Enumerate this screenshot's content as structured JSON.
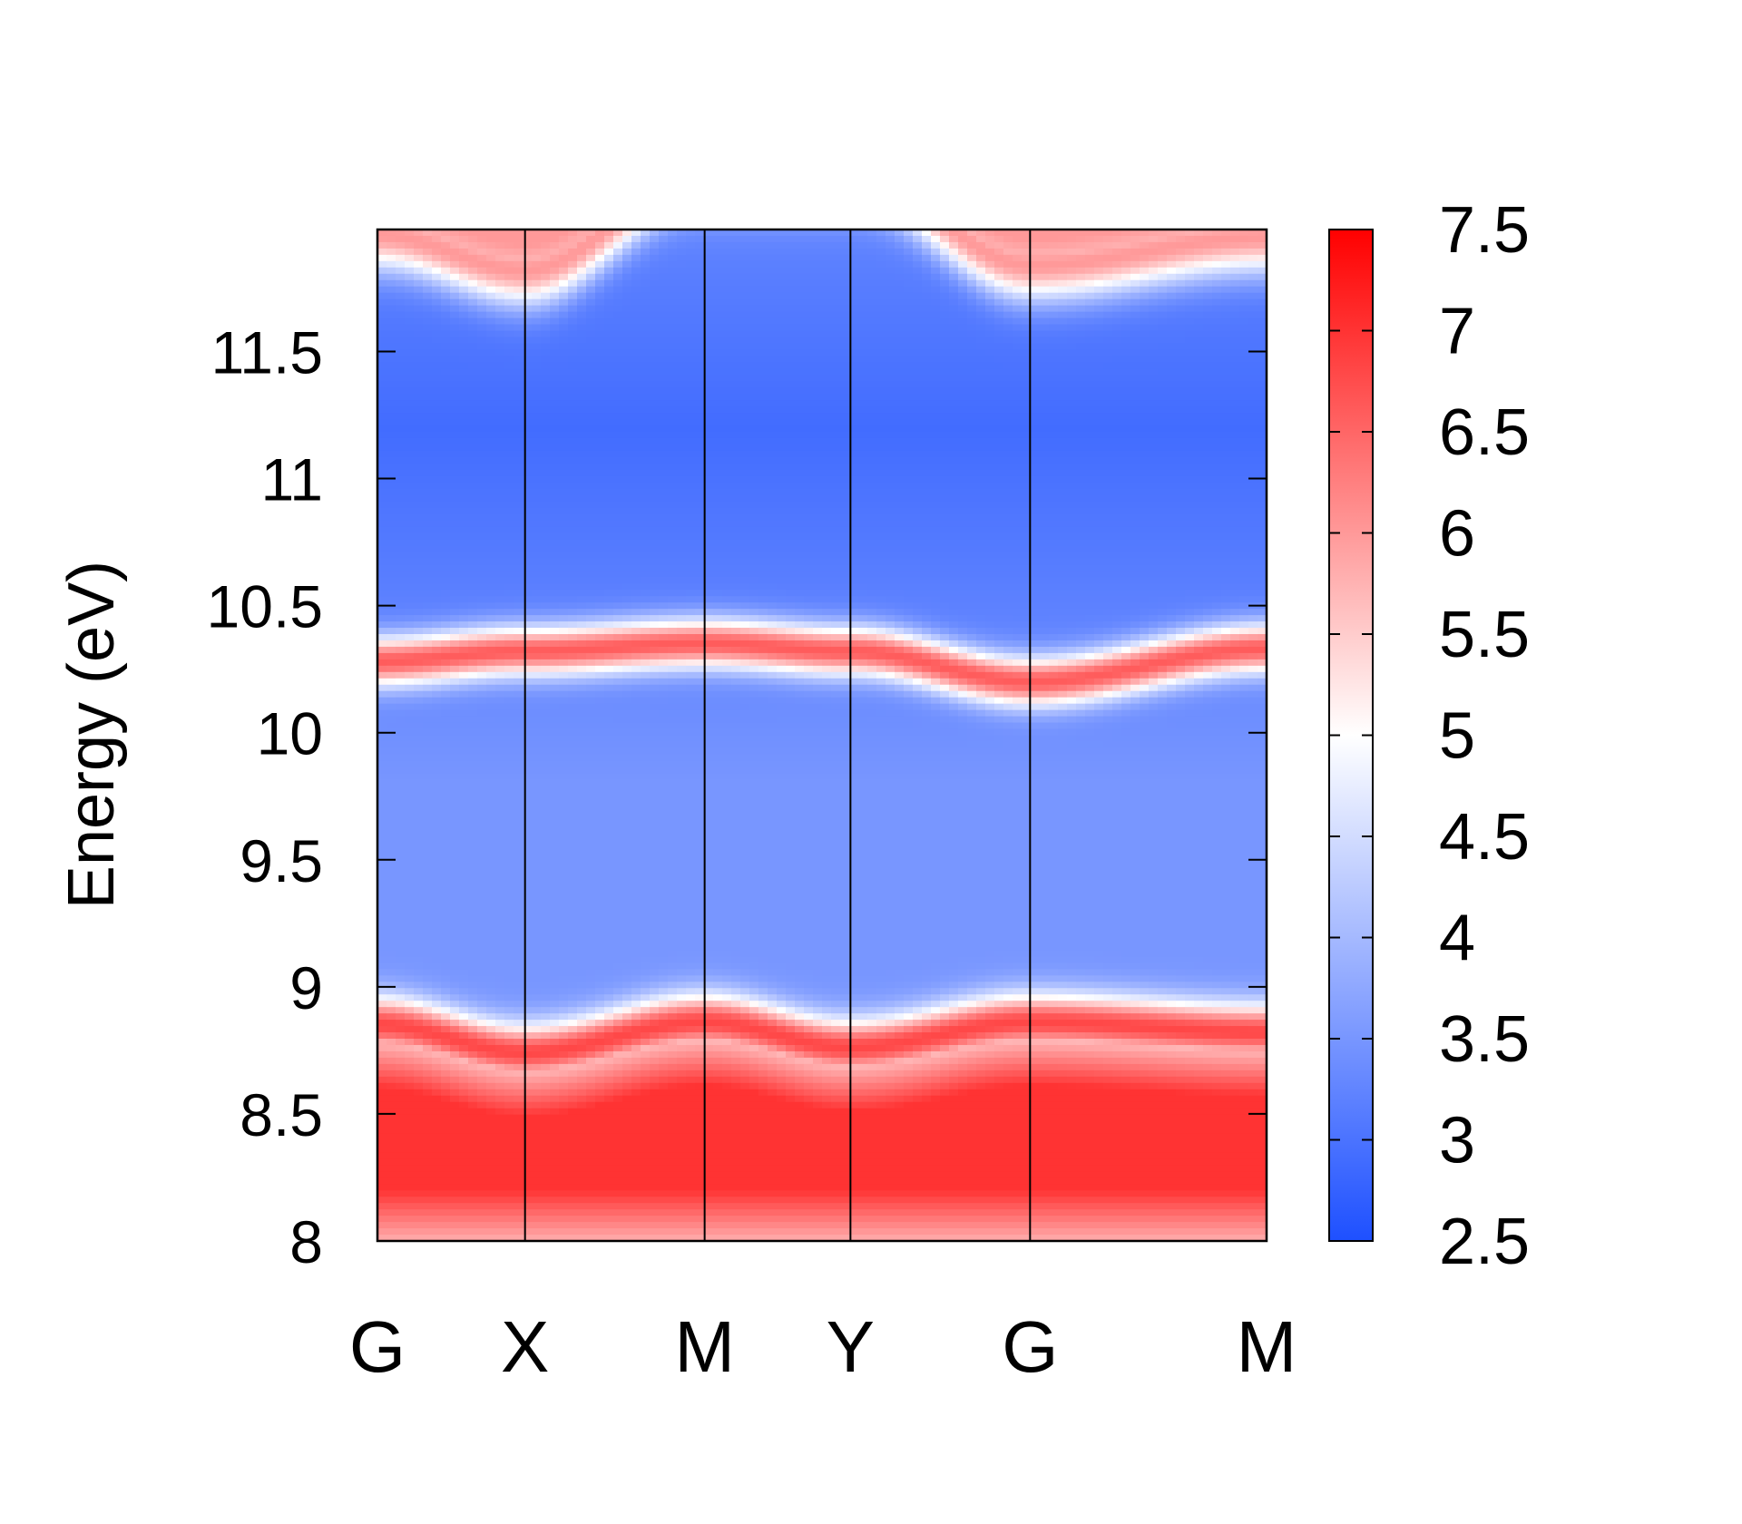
{
  "chart_data": {
    "type": "heatmap",
    "title": "",
    "ylabel": "Energy (eV)",
    "xlabel": "",
    "ylim": [
      8,
      11.98
    ],
    "yticks": [
      8,
      8.5,
      9,
      9.5,
      10,
      10.5,
      11,
      11.5
    ],
    "ytick_labels": [
      "8",
      "8.5",
      "9",
      "9.5",
      "10",
      "10.5",
      "11",
      "11.5"
    ],
    "kpath_labels": [
      "G",
      "X",
      "M",
      "Y",
      "G",
      "M"
    ],
    "kpath_positions": [
      0,
      0.166,
      0.368,
      0.532,
      0.734,
      1.0
    ],
    "colorbar": {
      "range": [
        2.5,
        7.5
      ],
      "ticks": [
        2.5,
        3,
        3.5,
        4,
        4.5,
        5,
        5.5,
        6,
        6.5,
        7,
        7.5
      ],
      "tick_labels": [
        "2.5",
        "3",
        "3.5",
        "4",
        "4.5",
        "5",
        "5.5",
        "6",
        "6.5",
        "7",
        "7.5"
      ],
      "colors": [
        "#1e50ff",
        "#ffffff",
        "#ff0000"
      ]
    },
    "bands": [
      {
        "name": "",
        "k": [
          0,
          0.166,
          0.368,
          0.532,
          0.734,
          1.0
        ],
        "energy": [
          10.28,
          10.32,
          10.35,
          10.32,
          10.2,
          10.33
        ],
        "width": 0.07,
        "peak": 6.6
      },
      {
        "name": "",
        "k": [
          0,
          0.166,
          0.368,
          0.532,
          0.734,
          1.0
        ],
        "energy": [
          11.96,
          11.82,
          12.2,
          12.2,
          11.84,
          11.95
        ],
        "width": 0.1,
        "peak": 6.0
      },
      {
        "name": "",
        "k": [
          0,
          0.166,
          0.368,
          0.532,
          0.734,
          1.0
        ],
        "energy": [
          8.85,
          8.74,
          8.86,
          8.76,
          8.86,
          8.82
        ],
        "width": 0.08,
        "peak": 6.8
      }
    ],
    "background": {
      "description_levels": [
        3.0,
        3.6
      ],
      "min_level": 2.9
    }
  }
}
